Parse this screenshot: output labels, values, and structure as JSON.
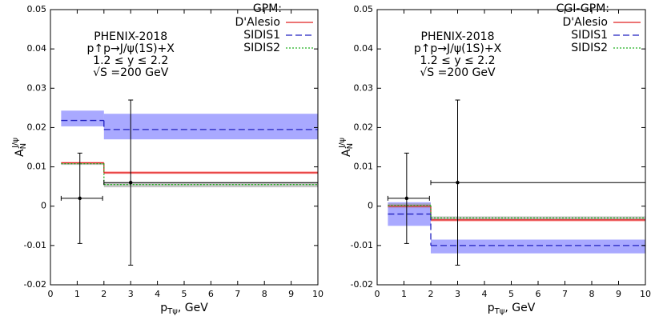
{
  "chart_data": [
    {
      "type": "step",
      "annotation": [
        "PHENIX-2018",
        "p↑p→J/ψ(1S)+X",
        "1.2 ≤ y ≤ 2.2",
        "√S =200 GeV"
      ],
      "legend_title": "GPM:",
      "x_label": {
        "text": "p",
        "subscript": "Tψ",
        "suffix": ", GeV"
      },
      "y_label": {
        "text": "A",
        "subscript": "N",
        "superscript": "J/ψ"
      },
      "xlim": [
        0,
        10
      ],
      "xticks": [
        0,
        1,
        2,
        3,
        4,
        5,
        6,
        7,
        8,
        9,
        10
      ],
      "ylim": [
        -0.02,
        0.05
      ],
      "yticks": [
        -0.02,
        -0.01,
        0,
        0.01,
        0.02,
        0.03,
        0.04,
        0.05
      ],
      "series": [
        {
          "name": "D'Alesio",
          "color": "#e02020",
          "dash": "none",
          "band_color": "#ff9090",
          "bins": [
            0.4,
            2,
            10
          ],
          "values": [
            0.011,
            0.0085
          ],
          "band_low": [
            0.0107,
            0.0082
          ],
          "band_high": [
            0.0113,
            0.0089
          ]
        },
        {
          "name": "SIDIS1",
          "color": "#2020c0",
          "dash": "8,4",
          "band_color": "#7070ff",
          "bins": [
            0.4,
            2,
            10
          ],
          "values": [
            0.0218,
            0.0195
          ],
          "band_low": [
            0.0203,
            0.017
          ],
          "band_high": [
            0.0243,
            0.0235
          ]
        },
        {
          "name": "SIDIS2",
          "color": "#20b020",
          "dash": "2,2",
          "band_color": "#a0a0a0",
          "bins": [
            0.4,
            2,
            10
          ],
          "values": [
            0.0108,
            0.0055
          ],
          "band_low": [
            0.0105,
            0.0048
          ],
          "band_high": [
            0.0111,
            0.006
          ]
        }
      ],
      "points": {
        "x": [
          1.1,
          3
        ],
        "values": [
          0.002,
          0.006
        ],
        "x_low": [
          0.4,
          2
        ],
        "x_high": [
          1.95,
          10
        ],
        "low": [
          -0.0095,
          -0.015
        ],
        "high": [
          0.0135,
          0.027
        ]
      }
    },
    {
      "type": "step",
      "annotation": [
        "PHENIX-2018",
        "p↑p→J/ψ(1S)+X",
        "1.2 ≤ y ≤ 2.2",
        "√S =200 GeV"
      ],
      "legend_title": "CGI-GPM:",
      "x_label": {
        "text": "p",
        "subscript": "Tψ",
        "suffix": ", GeV"
      },
      "y_label": {
        "text": "A",
        "subscript": "N",
        "superscript": "J/ψ"
      },
      "xlim": [
        0,
        10
      ],
      "xticks": [
        0,
        1,
        2,
        3,
        4,
        5,
        6,
        7,
        8,
        9,
        10
      ],
      "ylim": [
        -0.02,
        0.05
      ],
      "yticks": [
        -0.02,
        -0.01,
        0,
        0.01,
        0.02,
        0.03,
        0.04,
        0.05
      ],
      "series": [
        {
          "name": "D'Alesio",
          "color": "#e02020",
          "dash": "none",
          "band_color": "#ff9090",
          "bins": [
            0.4,
            2,
            10
          ],
          "values": [
            0,
            -0.0035
          ],
          "band_low": [
            -0.0005,
            -0.0039
          ],
          "band_high": [
            0.0005,
            -0.0031
          ]
        },
        {
          "name": "SIDIS1",
          "color": "#2020c0",
          "dash": "8,4",
          "band_color": "#7070ff",
          "bins": [
            0.4,
            2,
            10
          ],
          "values": [
            -0.002,
            -0.01
          ],
          "band_low": [
            -0.005,
            -0.012
          ],
          "band_high": [
            0.001,
            -0.0085
          ]
        },
        {
          "name": "SIDIS2",
          "color": "#20b020",
          "dash": "2,2",
          "band_color": "#a0a0a0",
          "bins": [
            0.4,
            2,
            10
          ],
          "values": [
            0.0002,
            -0.003
          ],
          "band_low": [
            -0.0003,
            -0.0034
          ],
          "band_high": [
            0.0007,
            -0.0026
          ]
        }
      ],
      "points": {
        "x": [
          1.1,
          3
        ],
        "values": [
          0.002,
          0.006
        ],
        "x_low": [
          0.4,
          2
        ],
        "x_high": [
          1.95,
          10
        ],
        "low": [
          -0.0095,
          -0.015
        ],
        "high": [
          0.0135,
          0.027
        ]
      }
    }
  ]
}
